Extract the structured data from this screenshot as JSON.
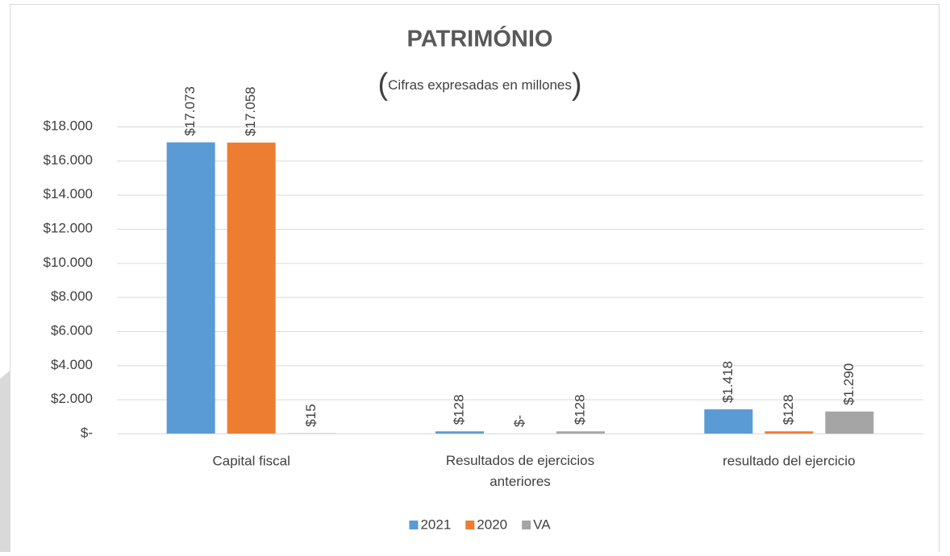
{
  "chart_data": {
    "type": "bar",
    "title": "PATRIMÓNIO",
    "subtitle": "(Cifras expresadas en millones)",
    "categories": [
      "Capital fiscal",
      "Resultados de ejercicios anteriores",
      "resultado del ejercicio"
    ],
    "series": [
      {
        "name": "2021",
        "color": "#5b9bd5",
        "values": [
          17073,
          128,
          1418
        ],
        "value_labels": [
          "$17.073",
          "$128",
          "$1.418"
        ]
      },
      {
        "name": "2020",
        "color": "#ed7d31",
        "values": [
          17058,
          0,
          128
        ],
        "value_labels": [
          "$17.058",
          "$-",
          "$128"
        ]
      },
      {
        "name": "VA",
        "color": "#a5a5a5",
        "values": [
          15,
          128,
          1290
        ],
        "value_labels": [
          "$15",
          "$128",
          "$1.290"
        ]
      }
    ],
    "ylim": [
      0,
      18000
    ],
    "yticks": [
      {
        "value": 0,
        "label": "$-"
      },
      {
        "value": 2000,
        "label": "$2.000"
      },
      {
        "value": 4000,
        "label": "$4.000"
      },
      {
        "value": 6000,
        "label": "$6.000"
      },
      {
        "value": 8000,
        "label": "$8.000"
      },
      {
        "value": 10000,
        "label": "$10.000"
      },
      {
        "value": 12000,
        "label": "$12.000"
      },
      {
        "value": 14000,
        "label": "$14.000"
      },
      {
        "value": 16000,
        "label": "$16.000"
      },
      {
        "value": 18000,
        "label": "$18.000"
      }
    ],
    "grid": true,
    "legend": "bottom"
  }
}
